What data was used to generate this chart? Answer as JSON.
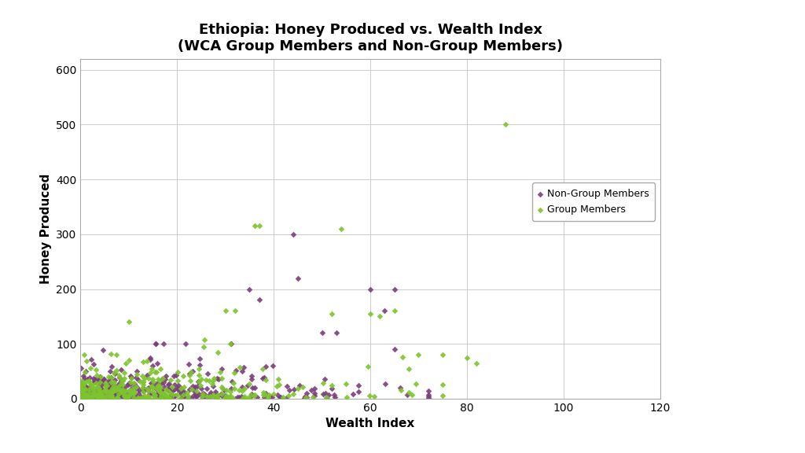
{
  "title_line1": "Ethiopia: Honey Produced vs. Wealth Index",
  "title_line2": "(WCA Group Members and Non-Group Members)",
  "xlabel": "Wealth Index",
  "ylabel": "Honey Produced",
  "xlim": [
    0,
    120
  ],
  "ylim": [
    0,
    620
  ],
  "xticks": [
    0,
    20,
    40,
    60,
    80,
    100,
    120
  ],
  "yticks": [
    0,
    100,
    200,
    300,
    400,
    500,
    600
  ],
  "group_color": "#7DC52E",
  "nongroup_color": "#7B3F7B",
  "background_color": "#FFFFFF",
  "fig_background": "#FFFFFF",
  "legend_label_group": "Group Members",
  "legend_label_nongroup": "Non-Group Members",
  "title_fontsize": 13,
  "axis_label_fontsize": 11,
  "tick_fontsize": 10
}
